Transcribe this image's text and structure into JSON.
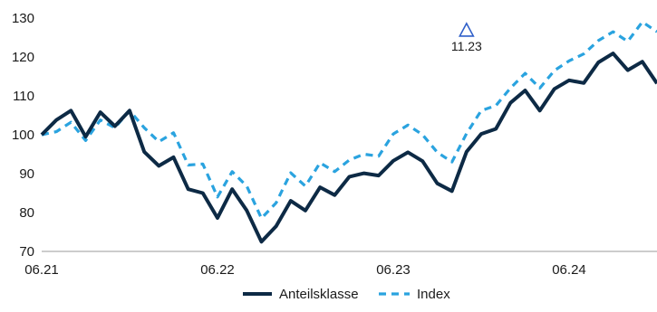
{
  "chart_data": {
    "type": "line",
    "title": "",
    "xlabel": "",
    "ylabel": "",
    "ylim": [
      70,
      130
    ],
    "yticks": [
      70,
      80,
      90,
      100,
      110,
      120,
      130
    ],
    "xticks": [
      "06.21",
      "06.22",
      "06.23",
      "06.24"
    ],
    "grid": false,
    "legend_position": "bottom-center",
    "colors": {
      "anteilsklasse": "#0d2a45",
      "index": "#2aa3df",
      "annotation": "#2f5fc9"
    },
    "x": [
      "06.21",
      "07.21",
      "08.21",
      "09.21",
      "10.21",
      "11.21",
      "12.21",
      "01.22",
      "02.22",
      "03.22",
      "04.22",
      "05.22",
      "06.22",
      "07.22",
      "08.22",
      "09.22",
      "10.22",
      "11.22",
      "12.22",
      "01.23",
      "02.23",
      "03.23",
      "04.23",
      "05.23",
      "06.23",
      "07.23",
      "08.23",
      "09.23",
      "10.23",
      "11.23",
      "12.23",
      "01.24",
      "02.24",
      "03.24",
      "04.24",
      "05.24",
      "06.24",
      "07.24",
      "08.24",
      "09.24",
      "10.24",
      "11.24",
      "12.24"
    ],
    "series": [
      {
        "name": "Anteilsklasse",
        "style": "solid",
        "values": [
          100,
          103.8,
          106.2,
          99.5,
          105.8,
          102.2,
          106.2,
          95.6,
          92.0,
          94.2,
          86.0,
          85.0,
          78.6,
          86.0,
          80.5,
          72.5,
          76.5,
          83.0,
          80.5,
          86.5,
          84.5,
          89.2,
          90.1,
          89.5,
          93.3,
          95.5,
          93.2,
          87.5,
          85.5,
          95.6,
          100.2,
          101.5,
          108.2,
          111.4,
          106.2,
          111.8,
          114.0,
          113.3,
          118.6,
          120.9,
          116.6,
          118.8,
          113.2
        ]
      },
      {
        "name": "Index",
        "style": "dashed",
        "values": [
          100,
          100.8,
          103.2,
          98.5,
          103.8,
          101.8,
          106.2,
          101.8,
          98.2,
          100.5,
          92.2,
          92.5,
          84.0,
          90.5,
          86.8,
          78.5,
          82.5,
          90.2,
          86.8,
          92.8,
          90.5,
          93.5,
          95.0,
          94.5,
          100.2,
          102.5,
          100.0,
          95.5,
          93.0,
          100.3,
          106.2,
          107.5,
          112.0,
          115.8,
          112.0,
          116.5,
          119.0,
          120.8,
          124.2,
          126.5,
          124.0,
          129.0,
          126.5
        ]
      }
    ],
    "annotations": [
      {
        "label": "11.23",
        "x": "11.23",
        "y": 127.0,
        "marker": "triangle-outline"
      }
    ]
  }
}
